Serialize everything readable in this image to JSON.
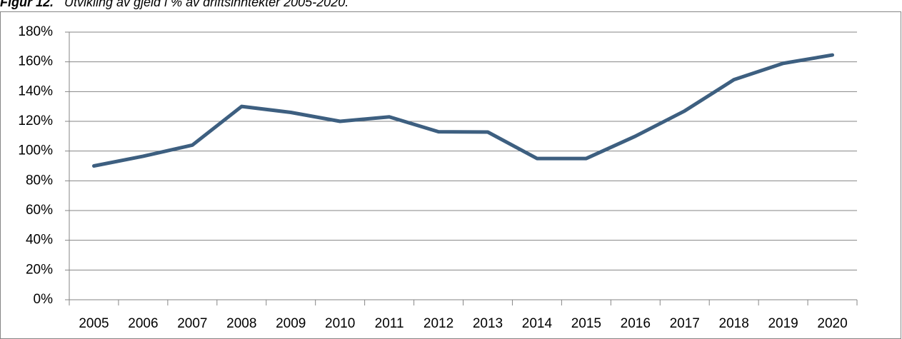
{
  "chart_data": {
    "type": "line",
    "figure_label": "Figur 12.",
    "title": "Utvikling av gjeld i % av driftsinntekter 2005-2020.",
    "categories": [
      "2005",
      "2006",
      "2007",
      "2008",
      "2009",
      "2010",
      "2011",
      "2012",
      "2013",
      "2014",
      "2015",
      "2016",
      "2017",
      "2018",
      "2019",
      "2020"
    ],
    "values": [
      90,
      96.5,
      104,
      130,
      126,
      120,
      123,
      113,
      112.8,
      95,
      95,
      110,
      127,
      148,
      159,
      164.6
    ],
    "color": "#3d5f80",
    "ylim": [
      0,
      180
    ],
    "yticks": [
      {
        "value": 0,
        "label": "0%"
      },
      {
        "value": 20,
        "label": "20%"
      },
      {
        "value": 40,
        "label": "40%"
      },
      {
        "value": 60,
        "label": "60%"
      },
      {
        "value": 80,
        "label": "80%"
      },
      {
        "value": 100,
        "label": "100%"
      },
      {
        "value": 120,
        "label": "120%"
      },
      {
        "value": 140,
        "label": "140%"
      },
      {
        "value": 160,
        "label": "160%"
      },
      {
        "value": 180,
        "label": "180%"
      }
    ],
    "grid": true
  }
}
